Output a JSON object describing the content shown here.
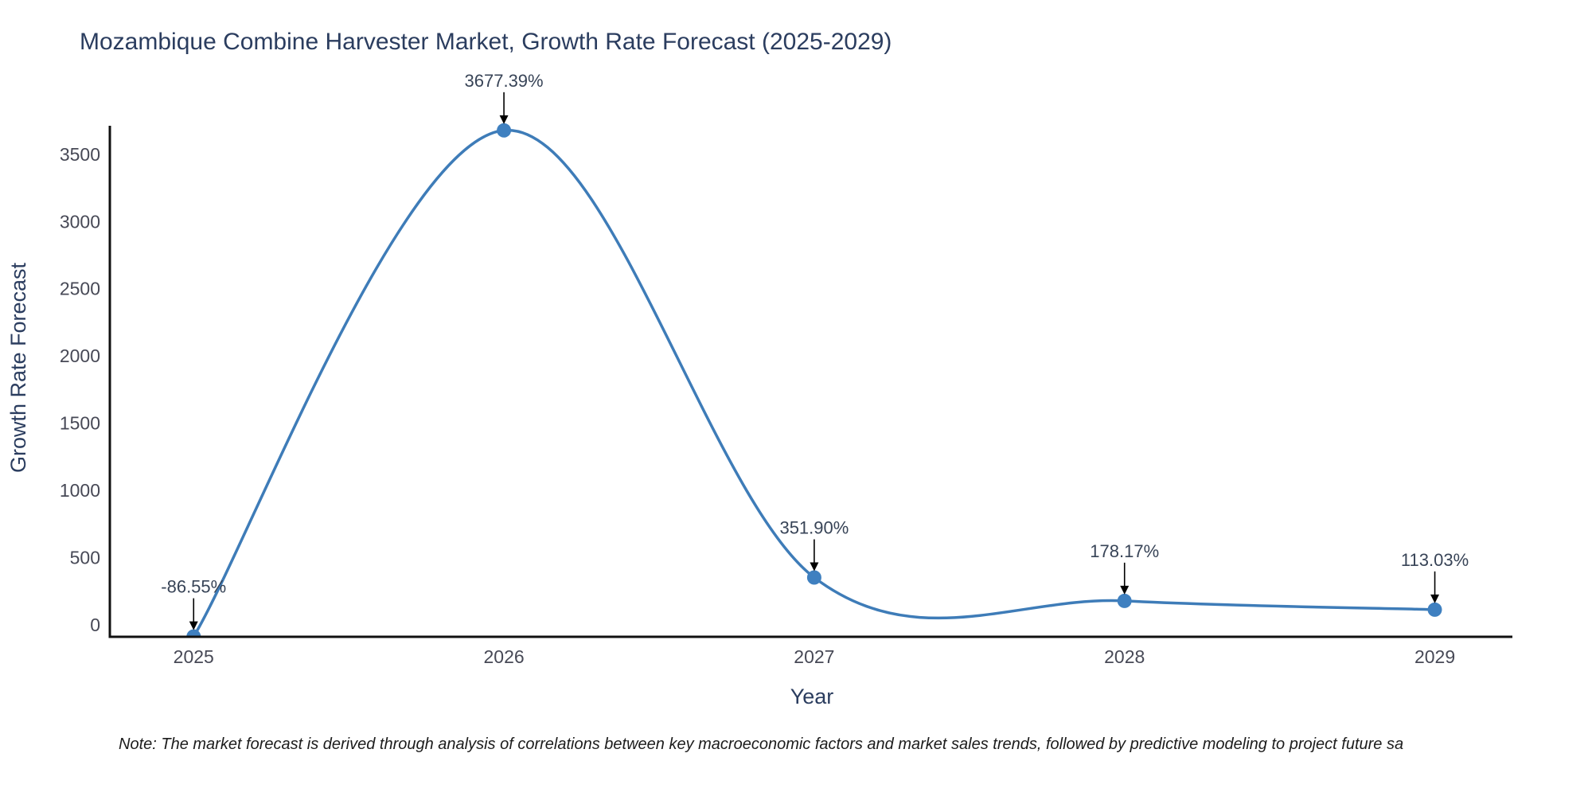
{
  "note": "Note: The market forecast is derived through analysis of correlations between key macroeconomic factors and market sales trends, followed by predictive modeling to project future sa",
  "chart_data": {
    "type": "line",
    "title": "Mozambique Combine Harvester Market, Growth Rate Forecast (2025-2029)",
    "xlabel": "Year",
    "ylabel": "Growth Rate Forecast",
    "line_shape": "spline",
    "grid": false,
    "legend": "none",
    "x": [
      2025,
      2026,
      2027,
      2028,
      2029
    ],
    "series": [
      {
        "name": "Growth Rate Forecast",
        "values": [
          -86.55,
          3677.39,
          351.9,
          178.17,
          113.03
        ]
      }
    ],
    "annotations": [
      "-86.55%",
      "3677.39%",
      "351.90%",
      "178.17%",
      "113.03%"
    ],
    "yticks": [
      0,
      500,
      1000,
      1500,
      2000,
      2500,
      3000,
      3500
    ],
    "xticks": [
      "2025",
      "2026",
      "2027",
      "2028",
      "2029"
    ],
    "xlim": [
      2024.73,
      2029.25
    ],
    "ylim": [
      -89,
      3712
    ],
    "colors": {
      "line": "#3e7cb8",
      "marker": "#3f80c0",
      "axis": "#111111",
      "arrow": "#000000",
      "title_text": "#2b3d5f",
      "axis_title_text": "#2b3d5f",
      "tick_text": "#474956",
      "annotation_text": "#384457",
      "note_text": "#1c1c1c",
      "background": "#ffffff"
    }
  }
}
